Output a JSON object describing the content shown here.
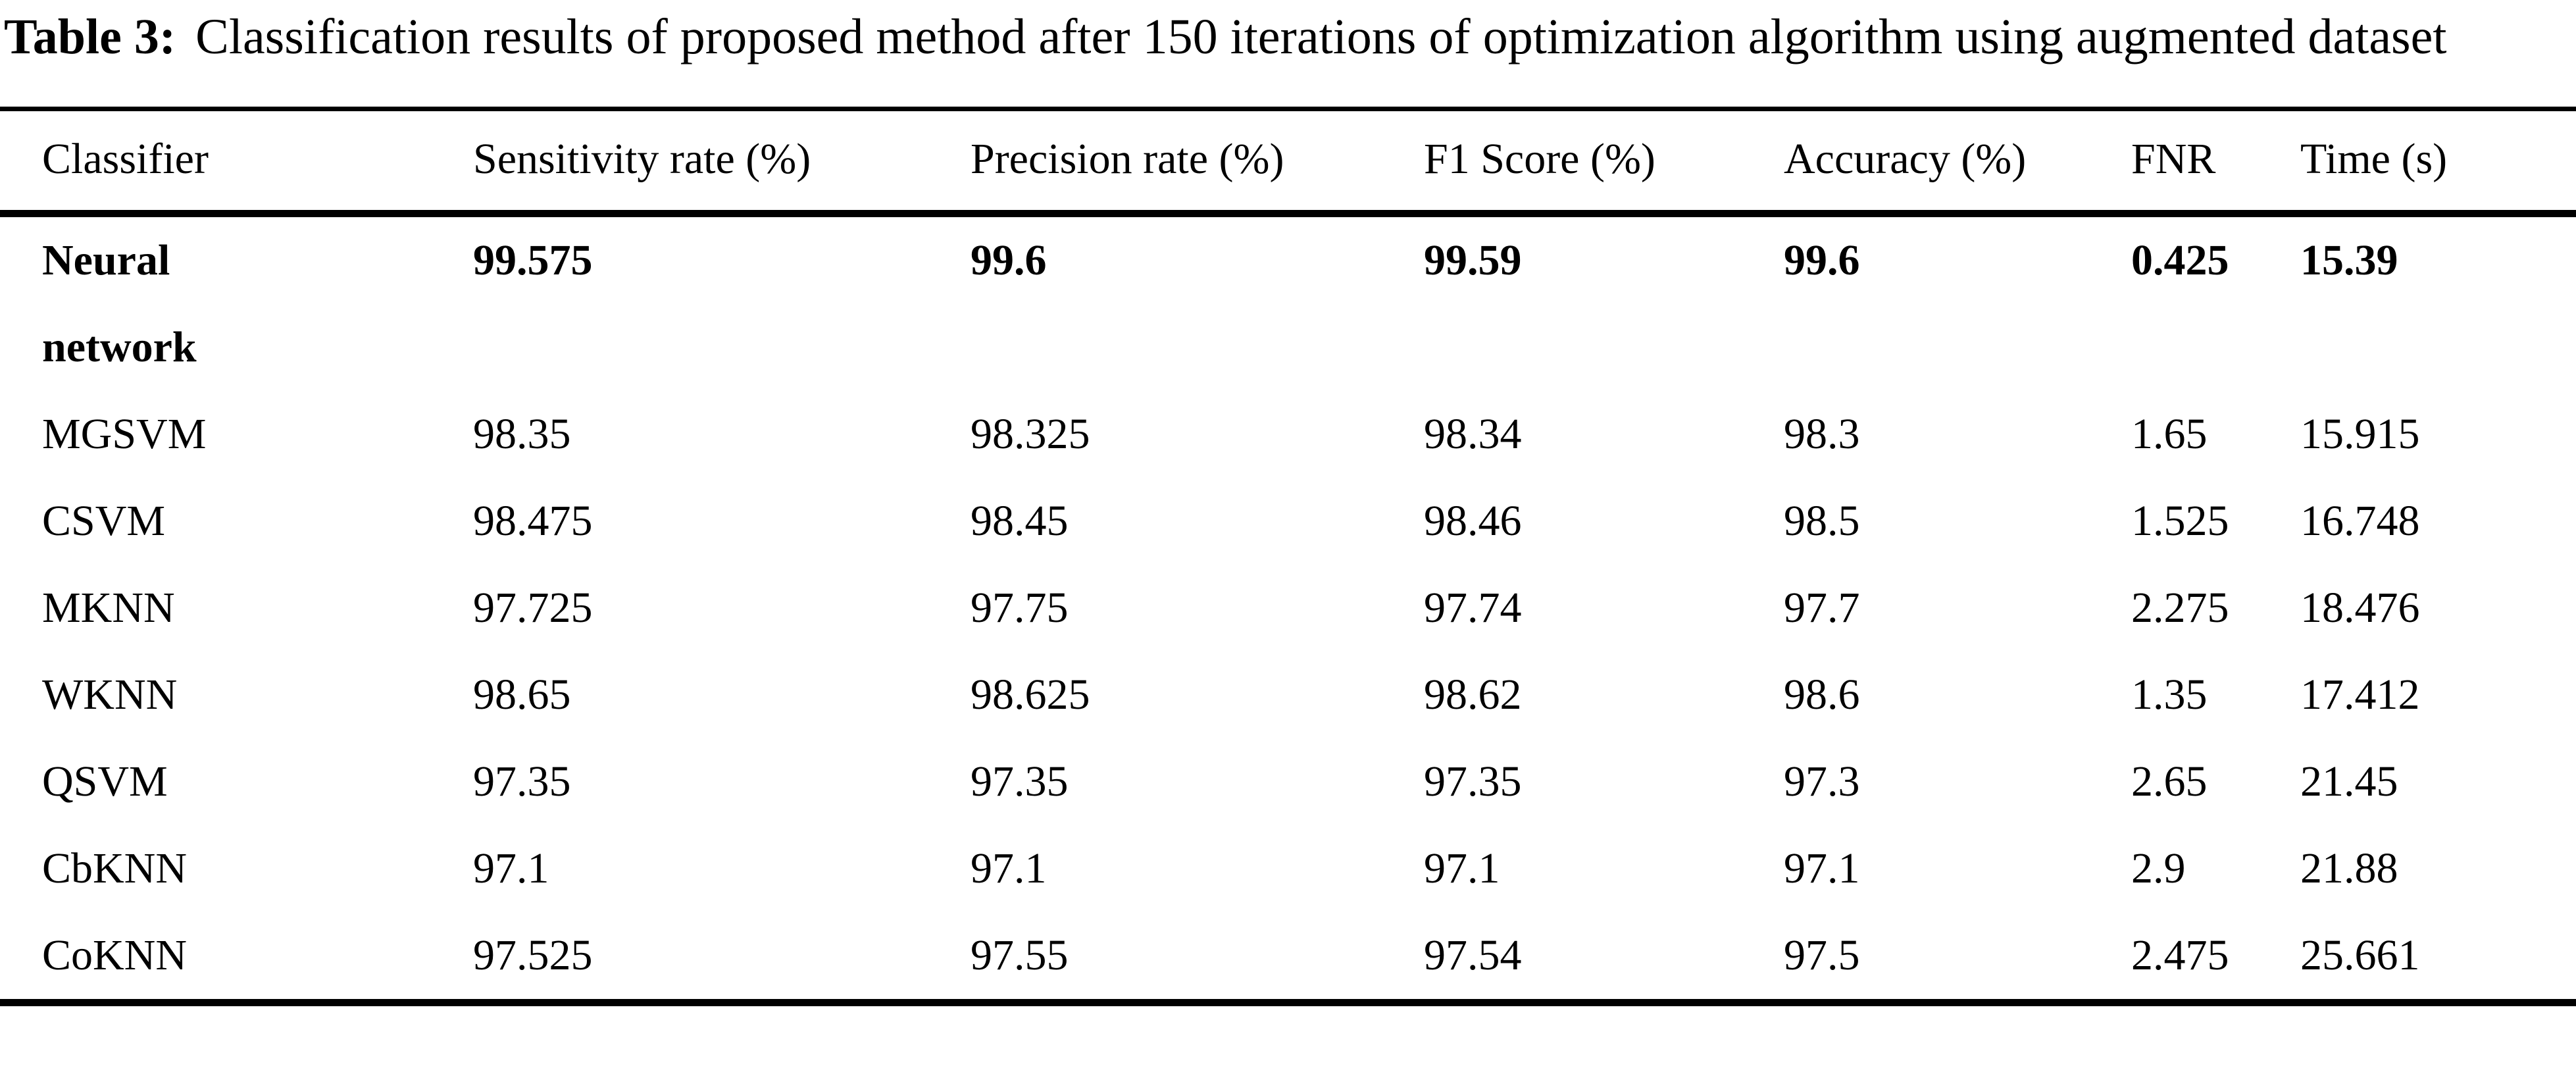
{
  "caption": {
    "label": "Table 3:",
    "text": "Classification results of proposed method after 150 iterations of optimization algorithm using augmented dataset"
  },
  "table": {
    "columns": [
      "Classifier",
      "Sensitivity rate (%)",
      "Precision rate (%)",
      "F1 Score (%)",
      "Accuracy (%)",
      "FNR",
      "Time (s)"
    ],
    "rows": [
      {
        "classifier": "Neural network",
        "bold": true,
        "values": [
          "99.575",
          "99.6",
          "99.59",
          "99.6",
          "0.425",
          "15.39"
        ]
      },
      {
        "classifier": "MGSVM",
        "bold": false,
        "values": [
          "98.35",
          "98.325",
          "98.34",
          "98.3",
          "1.65",
          "15.915"
        ]
      },
      {
        "classifier": "CSVM",
        "bold": false,
        "values": [
          "98.475",
          "98.45",
          "98.46",
          "98.5",
          "1.525",
          "16.748"
        ]
      },
      {
        "classifier": "MKNN",
        "bold": false,
        "values": [
          "97.725",
          "97.75",
          "97.74",
          "97.7",
          "2.275",
          "18.476"
        ]
      },
      {
        "classifier": "WKNN",
        "bold": false,
        "values": [
          "98.65",
          "98.625",
          "98.62",
          "98.6",
          "1.35",
          "17.412"
        ]
      },
      {
        "classifier": "QSVM",
        "bold": false,
        "values": [
          "97.35",
          "97.35",
          "97.35",
          "97.3",
          "2.65",
          "21.45"
        ]
      },
      {
        "classifier": "CbKNN",
        "bold": false,
        "values": [
          "97.1",
          "97.1",
          "97.1",
          "97.1",
          "2.9",
          "21.88"
        ]
      },
      {
        "classifier": "CoKNN",
        "bold": false,
        "values": [
          "97.525",
          "97.55",
          "97.54",
          "97.5",
          "2.475",
          "25.661"
        ]
      }
    ]
  },
  "chart_data": {
    "type": "table",
    "title": "Table 3: Classification results of proposed method after 150 iterations of optimization algorithm using augmented dataset",
    "columns": [
      "Classifier",
      "Sensitivity rate (%)",
      "Precision rate (%)",
      "F1 Score (%)",
      "Accuracy (%)",
      "FNR",
      "Time (s)"
    ],
    "rows": [
      [
        "Neural network",
        99.575,
        99.6,
        99.59,
        99.6,
        0.425,
        15.39
      ],
      [
        "MGSVM",
        98.35,
        98.325,
        98.34,
        98.3,
        1.65,
        15.915
      ],
      [
        "CSVM",
        98.475,
        98.45,
        98.46,
        98.5,
        1.525,
        16.748
      ],
      [
        "MKNN",
        97.725,
        97.75,
        97.74,
        97.7,
        2.275,
        18.476
      ],
      [
        "WKNN",
        98.65,
        98.625,
        98.62,
        98.6,
        1.35,
        17.412
      ],
      [
        "QSVM",
        97.35,
        97.35,
        97.35,
        97.3,
        2.65,
        21.45
      ],
      [
        "CbKNN",
        97.1,
        97.1,
        97.1,
        97.1,
        2.9,
        21.88
      ],
      [
        "CoKNN",
        97.525,
        97.55,
        97.54,
        97.5,
        2.475,
        25.661
      ]
    ]
  }
}
